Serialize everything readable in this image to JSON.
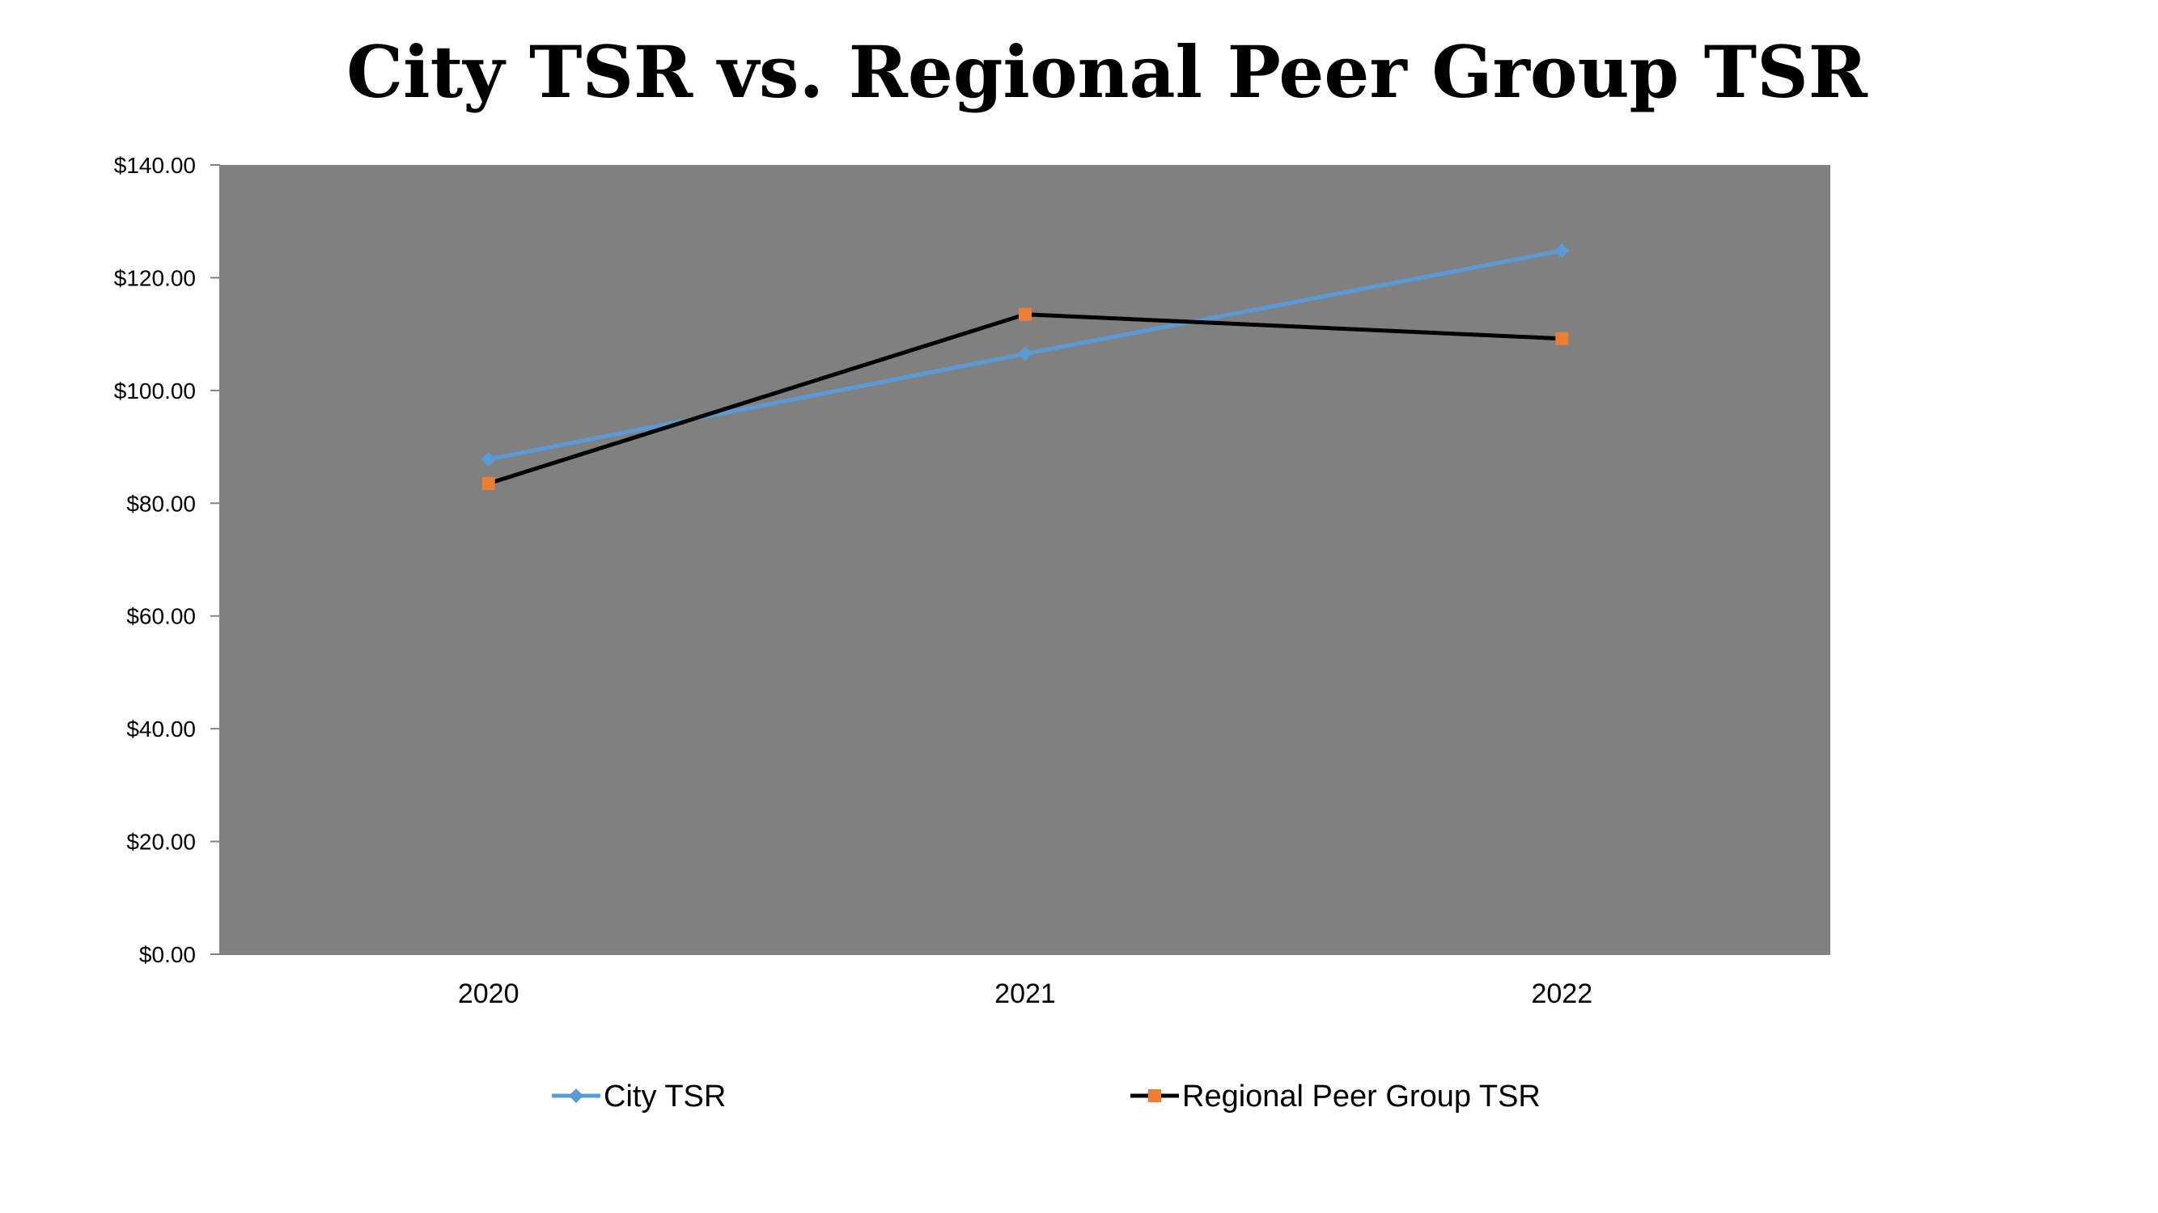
{
  "chart_data": {
    "type": "line",
    "title": "City TSR vs. Regional Peer Group TSR",
    "categories": [
      "2020",
      "2021",
      "2022"
    ],
    "ylim": [
      0,
      140
    ],
    "yticks": [
      0,
      20,
      40,
      60,
      80,
      100,
      120,
      140
    ],
    "ytick_labels": [
      "$0.00",
      "$20.00",
      "$40.00",
      "$60.00",
      "$80.00",
      "$100.00",
      "$120.00",
      "$140.00"
    ],
    "grid": false,
    "legend_position": "bottom",
    "plot_background": "#808080",
    "series": [
      {
        "name": "City TSR",
        "values": [
          87.8,
          106.5,
          124.8
        ],
        "line_color": "#5B9BD5",
        "marker_color": "#5B9BD5",
        "marker": "diamond"
      },
      {
        "name": "Regional Peer Group TSR",
        "values": [
          83.5,
          113.5,
          109.2
        ],
        "line_color": "#000000",
        "marker_color": "#ED7D31",
        "marker": "square"
      }
    ]
  }
}
